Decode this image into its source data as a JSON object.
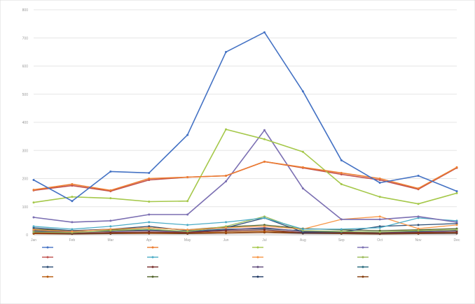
{
  "chart_data": {
    "type": "line",
    "title": "",
    "xlabel": "",
    "ylabel": "",
    "ylim": [
      0,
      800
    ],
    "yticks": [
      "0",
      "100",
      "200",
      "300",
      "400",
      "500",
      "600",
      "700",
      "800"
    ],
    "categories": [
      "Jan",
      "Feb",
      "Mar",
      "Apr",
      "May",
      "Jun",
      "Jul",
      "Aug",
      "Sep",
      "Oct",
      "Nov",
      "Dec"
    ],
    "grid": true,
    "legend_position": "bottom",
    "series": [
      {
        "name": "",
        "color": "#4472C4",
        "values": [
          195,
          120,
          225,
          220,
          355,
          650,
          720,
          510,
          265,
          185,
          210,
          155
        ]
      },
      {
        "name": "",
        "color": "#ED7D31",
        "values": [
          160,
          180,
          158,
          200,
          205,
          210,
          260,
          240,
          220,
          200,
          165,
          240
        ]
      },
      {
        "name": "",
        "color": "#A5C84A",
        "values": [
          115,
          135,
          130,
          118,
          120,
          375,
          340,
          295,
          180,
          135,
          110,
          148
        ]
      },
      {
        "name": "",
        "color": "#7B6FB2",
        "values": [
          62,
          45,
          50,
          72,
          72,
          190,
          372,
          165,
          55,
          55,
          65,
          45
        ]
      },
      {
        "name": "",
        "color": "#C0504D",
        "values": [
          158,
          175,
          155,
          195,
          205,
          210,
          260,
          238,
          215,
          195,
          162,
          238
        ]
      },
      {
        "name": "",
        "color": "#4BACC6",
        "values": [
          30,
          20,
          30,
          45,
          35,
          45,
          60,
          20,
          20,
          25,
          60,
          50
        ]
      },
      {
        "name": "",
        "color": "#F79646",
        "values": [
          18,
          12,
          20,
          25,
          18,
          25,
          30,
          20,
          55,
          65,
          22,
          35
        ]
      },
      {
        "name": "",
        "color": "#9BBB59",
        "values": [
          10,
          8,
          15,
          20,
          12,
          30,
          65,
          15,
          12,
          10,
          15,
          18
        ]
      },
      {
        "name": "",
        "color": "#2C4D75",
        "values": [
          25,
          15,
          20,
          30,
          15,
          25,
          60,
          10,
          10,
          30,
          35,
          40
        ]
      },
      {
        "name": "",
        "color": "#772C2A",
        "values": [
          8,
          6,
          8,
          10,
          8,
          15,
          18,
          8,
          8,
          6,
          8,
          10
        ]
      },
      {
        "name": "",
        "color": "#5F497A",
        "values": [
          12,
          10,
          12,
          15,
          10,
          18,
          25,
          12,
          10,
          8,
          10,
          15
        ]
      },
      {
        "name": "",
        "color": "#276A7C",
        "values": [
          15,
          10,
          12,
          18,
          12,
          20,
          22,
          14,
          12,
          10,
          12,
          14
        ]
      },
      {
        "name": "",
        "color": "#B65708",
        "values": [
          5,
          5,
          6,
          8,
          6,
          10,
          12,
          8,
          6,
          5,
          6,
          8
        ]
      },
      {
        "name": "",
        "color": "#4F6228",
        "values": [
          20,
          15,
          18,
          25,
          18,
          28,
          35,
          22,
          18,
          15,
          18,
          22
        ]
      },
      {
        "name": "",
        "color": "#1F3864",
        "values": [
          6,
          4,
          5,
          8,
          5,
          10,
          12,
          6,
          5,
          4,
          5,
          6
        ]
      },
      {
        "name": "",
        "color": "#843C0C",
        "values": [
          4,
          3,
          4,
          5,
          4,
          6,
          8,
          5,
          4,
          3,
          4,
          5
        ]
      }
    ]
  }
}
